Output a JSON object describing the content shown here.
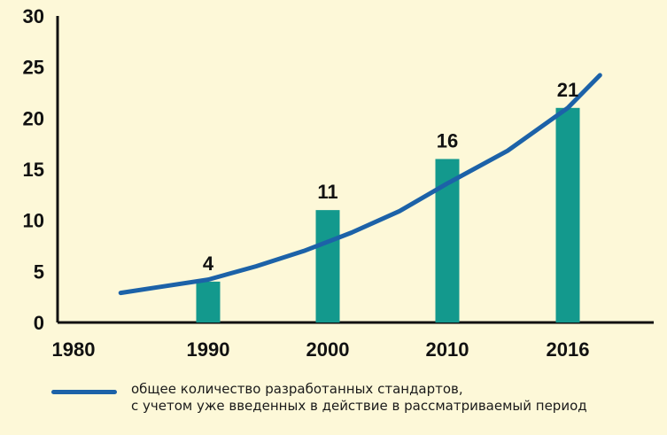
{
  "chart_data": {
    "type": "bar",
    "categories": [
      "1990",
      "2000",
      "2010",
      "2016"
    ],
    "values": [
      4,
      11,
      16,
      21
    ],
    "x_tick_labels": [
      "1980",
      "1990",
      "2000",
      "2010",
      "2016"
    ],
    "y_ticks": [
      0,
      5,
      10,
      15,
      20,
      25,
      30
    ],
    "ylim": [
      0,
      30
    ],
    "data_labels": [
      "4",
      "11",
      "16",
      "21"
    ],
    "trend_line": {
      "x": [
        1983.5,
        1986,
        1990,
        1994,
        1998,
        2002,
        2006,
        2010,
        2013,
        2016,
        2017.6
      ],
      "y": [
        2.9,
        3.4,
        4.2,
        5.5,
        7.0,
        8.8,
        10.9,
        13.6,
        16.8,
        21.0,
        24.2
      ]
    },
    "legend": [
      "общее количество разработанных стандартов,",
      "с учетом уже введенных в действие в рассматриваемый период"
    ],
    "grid": false,
    "colors": {
      "bar": "#13998d",
      "line": "#1c62a8",
      "axis": "#111111",
      "background": "#fdf8d8"
    }
  }
}
